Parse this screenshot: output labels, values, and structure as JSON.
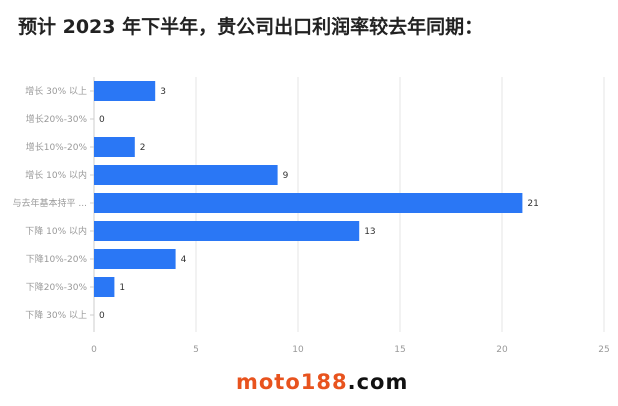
{
  "chart_data": {
    "type": "bar",
    "orientation": "horizontal",
    "title": "预计 2023 年下半年，贵公司出口利润率较去年同期：",
    "categories": [
      "增长 30% 以上",
      "增长20%-30%",
      "增长10%-20%",
      "增长 10% 以内",
      "与去年基本持平 ...",
      "下降 10% 以内",
      "下降10%-20%",
      "下降20%-30%",
      "下降 30% 以上"
    ],
    "values": [
      3,
      0,
      2,
      9,
      21,
      13,
      4,
      1,
      0
    ],
    "xlim": [
      0,
      25
    ],
    "xticks": [
      "0",
      "5",
      "10",
      "15",
      "20",
      "25"
    ],
    "grid": true,
    "bar_color": "#2a77f5"
  },
  "watermark": {
    "part1": "moto188",
    "part2": ".com"
  }
}
